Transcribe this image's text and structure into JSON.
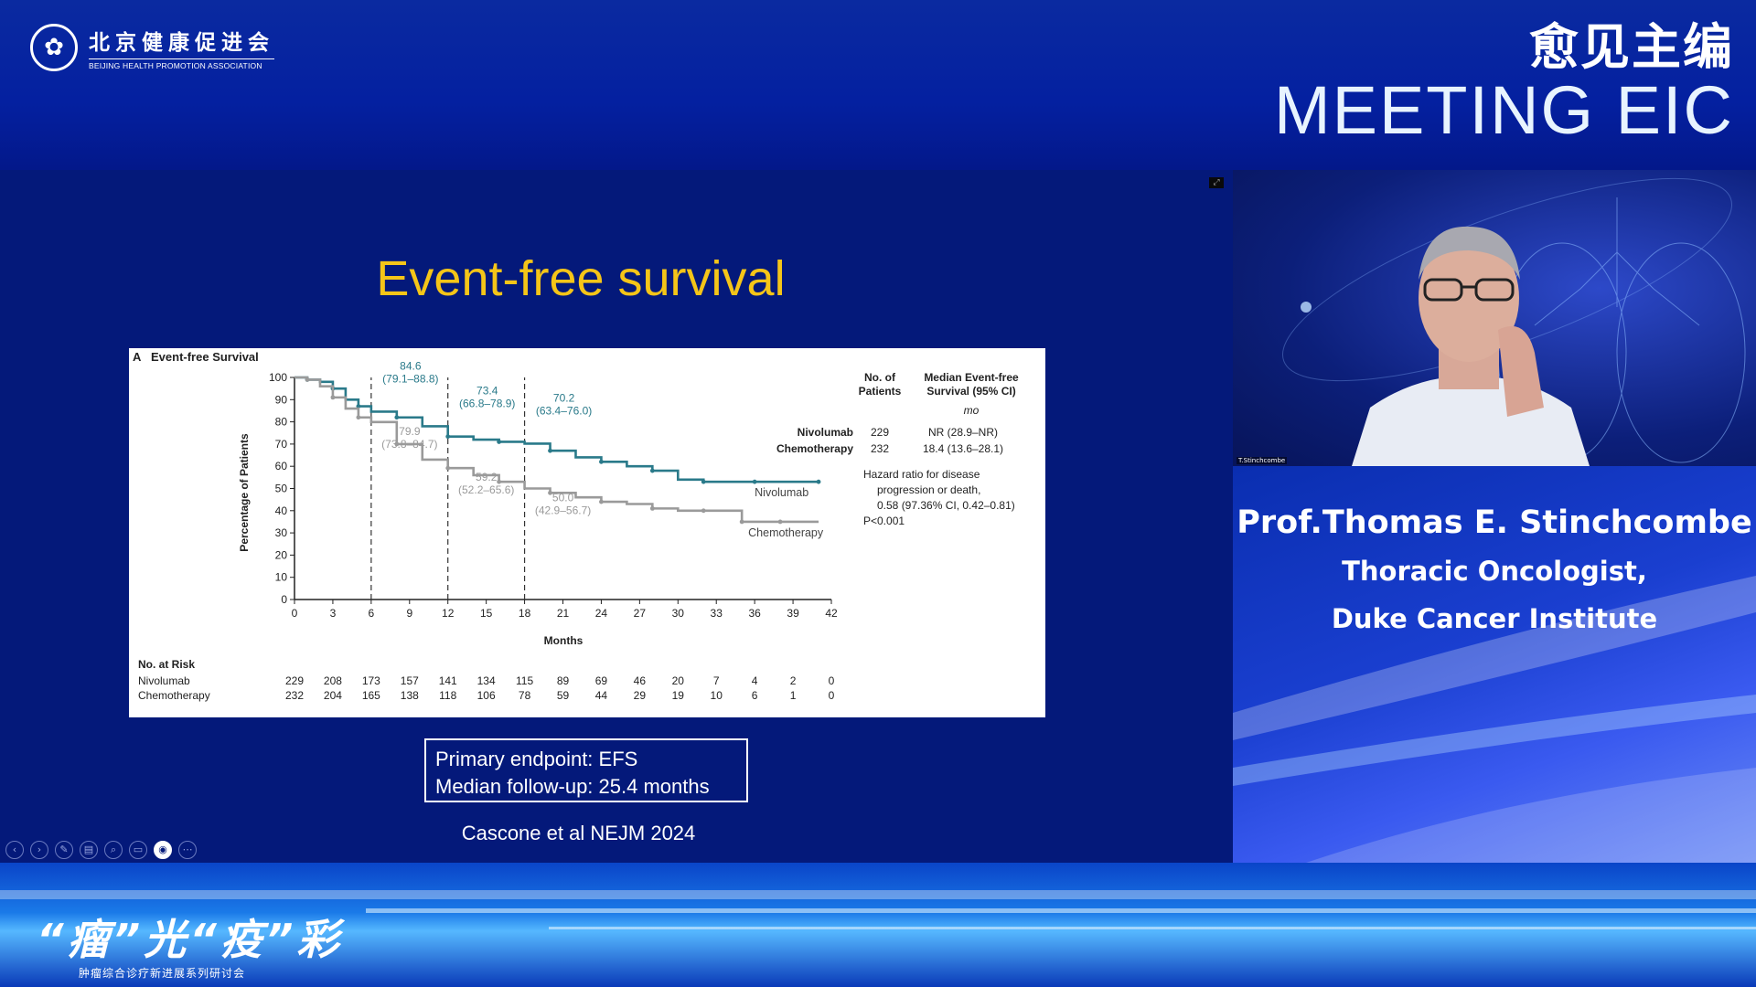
{
  "header": {
    "org_name_cn": "北京健康促进会",
    "org_name_en": "BEIJING HEALTH PROMOTION ASSOCIATION",
    "brand_cn": "愈见主编",
    "brand_en": "MEETING EIC"
  },
  "slide": {
    "title": "Event-free survival",
    "endpoint_line1": "Primary endpoint: EFS",
    "endpoint_line2": "Median follow-up: 25.4 months",
    "citation": "Cascone et al NEJM 2024",
    "colors": {
      "title": "#f5c518",
      "background": "#04197a",
      "nivolumab": "#2a7a8a",
      "chemotherapy": "#9a9a9a"
    }
  },
  "chart_data": {
    "type": "line",
    "panel_label": "A",
    "title": "Event-free Survival",
    "xlabel": "Months",
    "ylabel": "Percentage of Patients",
    "xlim": [
      0,
      42
    ],
    "ylim": [
      0,
      100
    ],
    "x_ticks": [
      0,
      3,
      6,
      9,
      12,
      15,
      18,
      21,
      24,
      27,
      30,
      33,
      36,
      39,
      42
    ],
    "y_ticks": [
      0,
      10,
      20,
      30,
      40,
      50,
      60,
      70,
      80,
      90,
      100
    ],
    "landmarks": [
      6,
      12,
      18
    ],
    "series": [
      {
        "name": "Nivolumab",
        "x": [
          0,
          1,
          2,
          3,
          4,
          5,
          6,
          8,
          10,
          12,
          14,
          16,
          18,
          20,
          22,
          24,
          26,
          28,
          30,
          32,
          34,
          36,
          38,
          41
        ],
        "y": [
          100,
          99,
          98,
          95,
          90,
          87,
          84.6,
          82,
          78,
          73.4,
          72,
          71,
          70.2,
          67,
          64,
          62,
          60,
          58,
          54,
          53,
          53,
          53,
          53,
          53
        ],
        "annotations": [
          {
            "x": 6,
            "line1": "84.6",
            "line2": "(79.1–88.8)"
          },
          {
            "x": 12,
            "line1": "73.4",
            "line2": "(66.8–78.9)"
          },
          {
            "x": 18,
            "line1": "70.2",
            "line2": "(63.4–76.0)"
          }
        ]
      },
      {
        "name": "Chemotherapy",
        "x": [
          0,
          1,
          2,
          3,
          4,
          5,
          6,
          8,
          10,
          12,
          14,
          16,
          18,
          20,
          22,
          24,
          26,
          28,
          30,
          32,
          34,
          35,
          36,
          38,
          41
        ],
        "y": [
          100,
          99,
          96,
          91,
          86,
          82,
          79.9,
          70,
          63,
          59.2,
          56,
          53,
          50.0,
          48,
          46,
          44,
          43,
          41,
          40,
          40,
          40,
          35,
          35,
          35,
          35
        ],
        "annotations": [
          {
            "x": 6,
            "line1": "79.9",
            "line2": "(73.8–84.7)"
          },
          {
            "x": 12,
            "line1": "59.2",
            "line2": "(52.2–65.6)"
          },
          {
            "x": 18,
            "line1": "50.0",
            "line2": "(42.9–56.7)"
          }
        ]
      }
    ],
    "legend_table": {
      "header_col1_line1": "No. of",
      "header_col1_line2": "Patients",
      "header_col2_line1": "Median Event-free",
      "header_col2_line2": "Survival (95% CI)",
      "unit": "mo",
      "rows": [
        {
          "group": "Nivolumab",
          "n": "229",
          "median": "NR (28.9–NR)"
        },
        {
          "group": "Chemotherapy",
          "n": "232",
          "median": "18.4 (13.6–28.1)"
        }
      ],
      "hr_line1": "Hazard ratio for disease",
      "hr_line2": "progression or death,",
      "hr_line3": "0.58 (97.36% CI, 0.42–0.81)",
      "p_value": "P<0.001"
    },
    "at_risk": {
      "label": "No. at Risk",
      "rows": [
        {
          "name": "Nivolumab",
          "values": [
            "229",
            "208",
            "173",
            "157",
            "141",
            "134",
            "115",
            "89",
            "69",
            "46",
            "20",
            "7",
            "4",
            "2",
            "0"
          ]
        },
        {
          "name": "Chemotherapy",
          "values": [
            "232",
            "204",
            "165",
            "138",
            "118",
            "106",
            "78",
            "59",
            "44",
            "29",
            "19",
            "10",
            "6",
            "1",
            "0"
          ]
        }
      ]
    }
  },
  "speaker": {
    "name": "Prof.Thomas E. Stinchcombe",
    "title": "Thoracic Oncologist,",
    "institution": "Duke Cancer Institute",
    "video_tag": "T.Stinchcombe"
  },
  "toolbar": {
    "icons": [
      "prev-icon",
      "next-icon",
      "pen-icon",
      "slides-icon",
      "zoom-icon",
      "subtitle-icon",
      "camera-icon",
      "more-icon"
    ]
  },
  "footer": {
    "event_title": "“瘤”光“疫”彩",
    "event_subtitle": "肿瘤综合诊疗新进展系列研讨会"
  }
}
